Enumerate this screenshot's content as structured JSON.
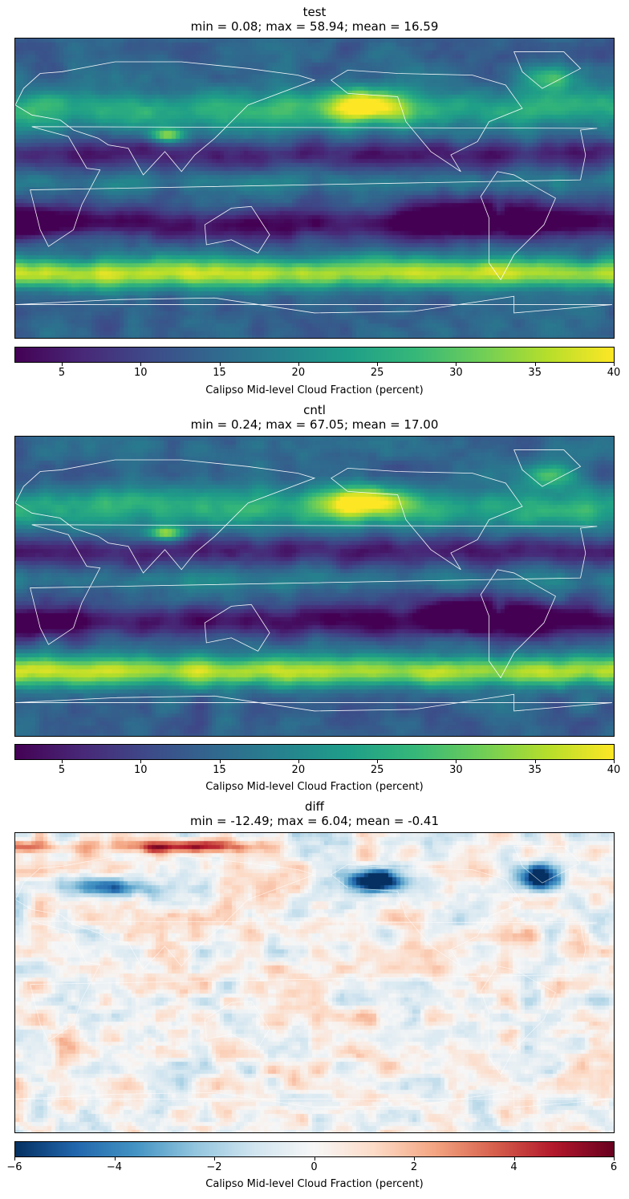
{
  "chart_data": [
    {
      "type": "heatmap",
      "name": "test",
      "title": "test",
      "subtitle": "min = 0.08; max = 58.94; mean = 16.59",
      "colormap": "viridis",
      "colorbar": {
        "range": [
          2,
          40
        ],
        "ticks": [
          "5",
          "10",
          "15",
          "20",
          "25",
          "30",
          "35",
          "40"
        ],
        "tick_values": [
          5,
          10,
          15,
          20,
          25,
          30,
          35,
          40
        ],
        "label": "Calipso Mid-level Cloud Fraction (percent)"
      },
      "stats": {
        "min": 0.08,
        "max": 58.94,
        "mean": 16.59
      }
    },
    {
      "type": "heatmap",
      "name": "cntl",
      "title": "cntl",
      "subtitle": "min = 0.24; max = 67.05; mean = 17.00",
      "colormap": "viridis",
      "colorbar": {
        "range": [
          2,
          40
        ],
        "ticks": [
          "5",
          "10",
          "15",
          "20",
          "25",
          "30",
          "35",
          "40"
        ],
        "tick_values": [
          5,
          10,
          15,
          20,
          25,
          30,
          35,
          40
        ],
        "label": "Calipso Mid-level Cloud Fraction (percent)"
      },
      "stats": {
        "min": 0.24,
        "max": 67.05,
        "mean": 17.0
      }
    },
    {
      "type": "heatmap",
      "name": "diff",
      "title": "diff",
      "subtitle": "min = -12.49; max = 6.04; mean = -0.41",
      "colormap": "RdBu_r",
      "colorbar": {
        "range": [
          -6,
          6
        ],
        "ticks": [
          "−6",
          "−4",
          "−2",
          "0",
          "2",
          "4",
          "6"
        ],
        "tick_values": [
          -6,
          -4,
          -2,
          0,
          2,
          4,
          6
        ],
        "label": "Calipso Mid-level Cloud Fraction (percent)"
      },
      "stats": {
        "min": -12.49,
        "max": 6.04,
        "mean": -0.41
      }
    }
  ],
  "colors": {
    "viridis": [
      "#440154",
      "#482878",
      "#3e4a89",
      "#31688e",
      "#26828e",
      "#1f9e89",
      "#35b779",
      "#6ece58",
      "#b5de2b",
      "#fde725"
    ],
    "rdbu_r": [
      "#053061",
      "#2166ac",
      "#4393c3",
      "#92c5de",
      "#d1e5f0",
      "#f7f7f7",
      "#fddbc7",
      "#f4a582",
      "#d6604d",
      "#b2182b",
      "#67001f"
    ],
    "coastline": "#ffffff"
  }
}
